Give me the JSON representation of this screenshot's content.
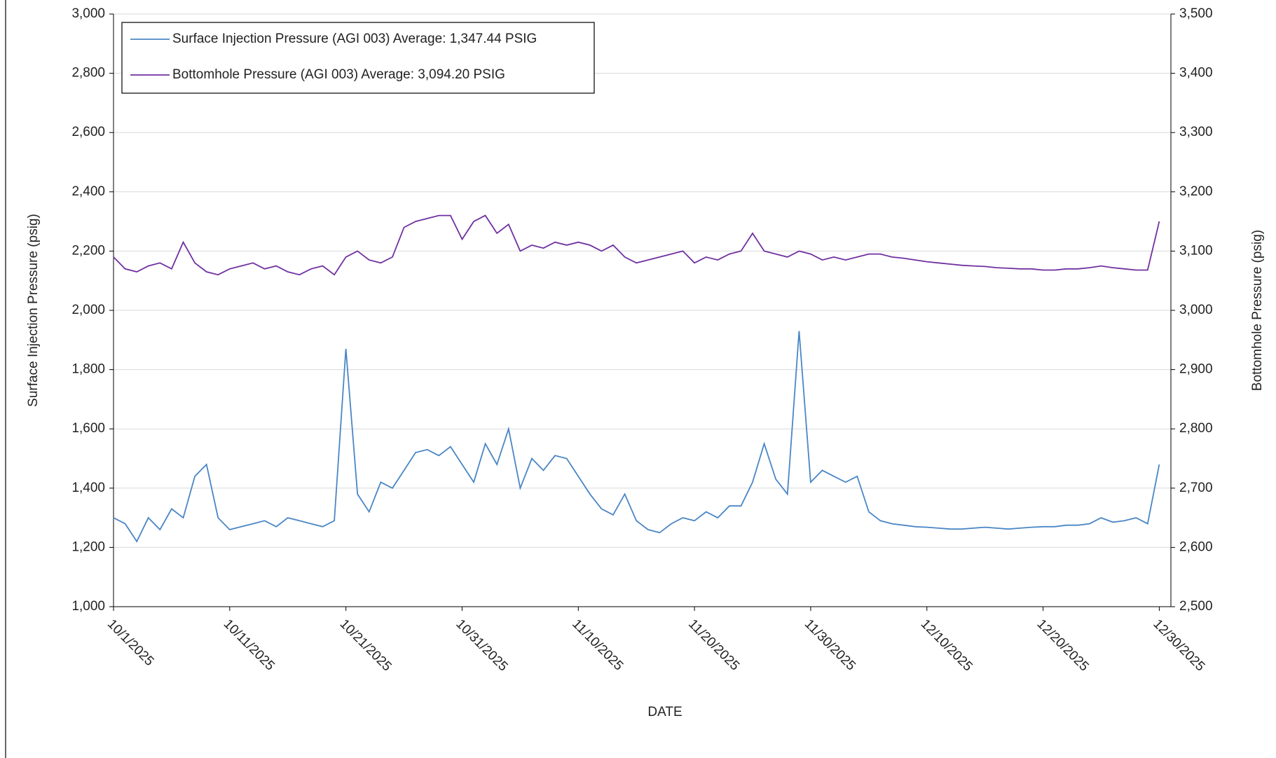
{
  "chart_data": {
    "type": "line",
    "x_label": "DATE",
    "y_label": "Surface Injection Pressure (psig)",
    "y2_label": "Bottomhole Pressure (psig)",
    "x": [
      "2025-10-01",
      "2025-10-02",
      "2025-10-03",
      "2025-10-04",
      "2025-10-05",
      "2025-10-06",
      "2025-10-07",
      "2025-10-08",
      "2025-10-09",
      "2025-10-10",
      "2025-10-11",
      "2025-10-12",
      "2025-10-13",
      "2025-10-14",
      "2025-10-15",
      "2025-10-16",
      "2025-10-17",
      "2025-10-18",
      "2025-10-19",
      "2025-10-20",
      "2025-10-21",
      "2025-10-22",
      "2025-10-23",
      "2025-10-24",
      "2025-10-25",
      "2025-10-26",
      "2025-10-27",
      "2025-10-28",
      "2025-10-29",
      "2025-10-30",
      "2025-10-31",
      "2025-11-01",
      "2025-11-02",
      "2025-11-03",
      "2025-11-04",
      "2025-11-05",
      "2025-11-06",
      "2025-11-07",
      "2025-11-08",
      "2025-11-09",
      "2025-11-10",
      "2025-11-11",
      "2025-11-12",
      "2025-11-13",
      "2025-11-14",
      "2025-11-15",
      "2025-11-16",
      "2025-11-17",
      "2025-11-18",
      "2025-11-19",
      "2025-11-20",
      "2025-11-21",
      "2025-11-22",
      "2025-11-23",
      "2025-11-24",
      "2025-11-25",
      "2025-11-26",
      "2025-11-27",
      "2025-11-28",
      "2025-11-29",
      "2025-11-30",
      "2025-12-01",
      "2025-12-02",
      "2025-12-03",
      "2025-12-04",
      "2025-12-05",
      "2025-12-06",
      "2025-12-07",
      "2025-12-08",
      "2025-12-09",
      "2025-12-10",
      "2025-12-11",
      "2025-12-12",
      "2025-12-13",
      "2025-12-14",
      "2025-12-15",
      "2025-12-16",
      "2025-12-17",
      "2025-12-18",
      "2025-12-19",
      "2025-12-20",
      "2025-12-21",
      "2025-12-22",
      "2025-12-23",
      "2025-12-24",
      "2025-12-25",
      "2025-12-26",
      "2025-12-27",
      "2025-12-28",
      "2025-12-29",
      "2025-12-30"
    ],
    "series": [
      {
        "name": "Surface Injection Pressure (AGI 003) Average: 1,347.44 PSIG",
        "color": "#4a86c5",
        "axis": "y",
        "values": [
          1300,
          1280,
          1220,
          1300,
          1260,
          1330,
          1300,
          1440,
          1480,
          1300,
          1260,
          1270,
          1280,
          1290,
          1270,
          1300,
          1290,
          1280,
          1270,
          1290,
          1870,
          1380,
          1320,
          1420,
          1400,
          1460,
          1520,
          1530,
          1510,
          1540,
          1480,
          1420,
          1550,
          1480,
          1600,
          1400,
          1500,
          1460,
          1510,
          1500,
          1440,
          1380,
          1330,
          1310,
          1380,
          1290,
          1260,
          1250,
          1280,
          1300,
          1290,
          1320,
          1300,
          1340,
          1340,
          1420,
          1550,
          1430,
          1380,
          1930,
          1420,
          1460,
          1440,
          1420,
          1440,
          1320,
          1290,
          1280,
          1275,
          1270,
          1268,
          1265,
          1262,
          1262,
          1265,
          1268,
          1265,
          1262,
          1265,
          1268,
          1270,
          1270,
          1275,
          1275,
          1280,
          1300,
          1285,
          1290,
          1300,
          1280,
          1480
        ]
      },
      {
        "name": "Bottomhole Pressure (AGI 003) Average: 3,094.20 PSIG",
        "color": "#7030a0",
        "axis": "y2",
        "values": [
          3090,
          3070,
          3065,
          3075,
          3080,
          3070,
          3115,
          3080,
          3065,
          3060,
          3070,
          3075,
          3080,
          3070,
          3075,
          3065,
          3060,
          3070,
          3075,
          3060,
          3090,
          3100,
          3085,
          3080,
          3090,
          3140,
          3150,
          3155,
          3160,
          3160,
          3120,
          3150,
          3160,
          3130,
          3145,
          3100,
          3110,
          3105,
          3115,
          3110,
          3115,
          3110,
          3100,
          3110,
          3090,
          3080,
          3085,
          3090,
          3095,
          3100,
          3080,
          3090,
          3085,
          3095,
          3100,
          3130,
          3100,
          3095,
          3090,
          3100,
          3095,
          3085,
          3090,
          3085,
          3090,
          3095,
          3095,
          3090,
          3088,
          3085,
          3082,
          3080,
          3078,
          3076,
          3075,
          3074,
          3072,
          3071,
          3070,
          3070,
          3068,
          3068,
          3070,
          3070,
          3072,
          3075,
          3072,
          3070,
          3068,
          3068,
          3150
        ]
      }
    ],
    "xlim": [
      "2025-10-01",
      "2025-12-31"
    ],
    "xticks": [
      {
        "value": "2025-10-01",
        "label": "10/1/2025"
      },
      {
        "value": "2025-10-11",
        "label": "10/11/2025"
      },
      {
        "value": "2025-10-21",
        "label": "10/21/2025"
      },
      {
        "value": "2025-10-31",
        "label": "10/31/2025"
      },
      {
        "value": "2025-11-10",
        "label": "11/10/2025"
      },
      {
        "value": "2025-11-20",
        "label": "11/20/2025"
      },
      {
        "value": "2025-11-30",
        "label": "11/30/2025"
      },
      {
        "value": "2025-12-10",
        "label": "12/10/2025"
      },
      {
        "value": "2025-12-20",
        "label": "12/20/2025"
      },
      {
        "value": "2025-12-30",
        "label": "12/30/2025"
      }
    ],
    "ylim": [
      1000,
      3000
    ],
    "yticks": [
      {
        "value": 1000,
        "label": "1,000"
      },
      {
        "value": 1200,
        "label": "1,200"
      },
      {
        "value": 1400,
        "label": "1,400"
      },
      {
        "value": 1600,
        "label": "1,600"
      },
      {
        "value": 1800,
        "label": "1,800"
      },
      {
        "value": 2000,
        "label": "2,000"
      },
      {
        "value": 2200,
        "label": "2,200"
      },
      {
        "value": 2400,
        "label": "2,400"
      },
      {
        "value": 2600,
        "label": "2,600"
      },
      {
        "value": 2800,
        "label": "2,800"
      },
      {
        "value": 3000,
        "label": "3,000"
      }
    ],
    "y2lim": [
      2500,
      3500
    ],
    "y2ticks": [
      {
        "value": 2500,
        "label": "2,500"
      },
      {
        "value": 2600,
        "label": "2,600"
      },
      {
        "value": 2700,
        "label": "2,700"
      },
      {
        "value": 2800,
        "label": "2,800"
      },
      {
        "value": 2900,
        "label": "2,900"
      },
      {
        "value": 3000,
        "label": "3,000"
      },
      {
        "value": 3100,
        "label": "3,100"
      },
      {
        "value": 3200,
        "label": "3,200"
      },
      {
        "value": 3300,
        "label": "3,300"
      },
      {
        "value": 3400,
        "label": "3,400"
      },
      {
        "value": 3500,
        "label": "3,500"
      }
    ],
    "grid": true,
    "legend": "upper left"
  }
}
